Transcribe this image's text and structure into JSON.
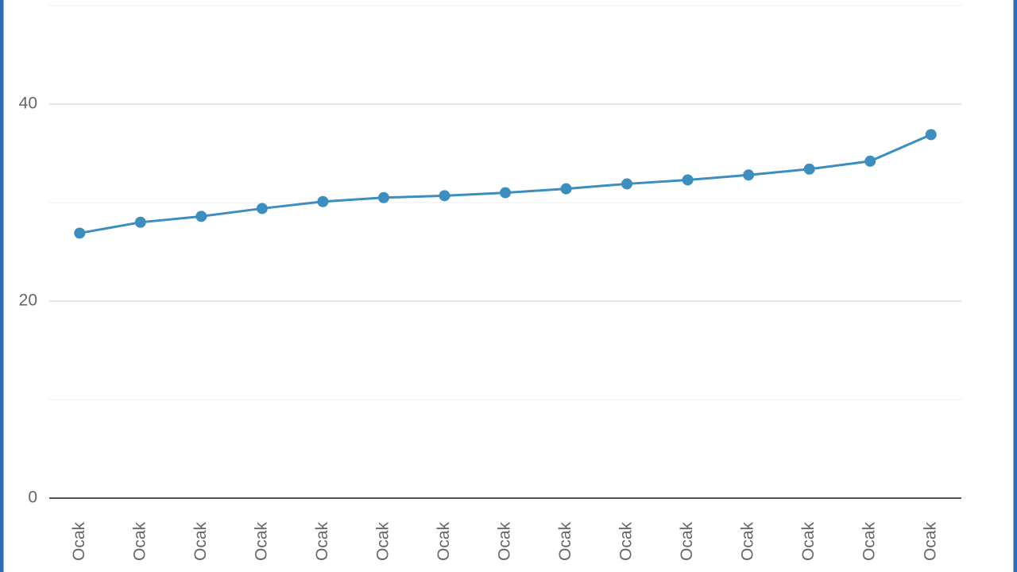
{
  "chart_data": {
    "type": "line",
    "categories": [
      "Ocak",
      "Ocak",
      "Ocak",
      "Ocak",
      "Ocak",
      "Ocak",
      "Ocak",
      "Ocak",
      "Ocak",
      "Ocak",
      "Ocak",
      "Ocak",
      "Ocak",
      "Ocak",
      "Ocak"
    ],
    "values": [
      26.9,
      28.0,
      28.6,
      29.4,
      30.1,
      30.5,
      30.7,
      31.0,
      31.4,
      31.9,
      32.3,
      32.8,
      33.4,
      34.2,
      36.9
    ],
    "color": "#3d8ebe",
    "ylim": [
      0,
      50
    ],
    "yticks": [
      0,
      20,
      40
    ],
    "minor_yticks": [
      10,
      30,
      50
    ],
    "grid": true
  }
}
